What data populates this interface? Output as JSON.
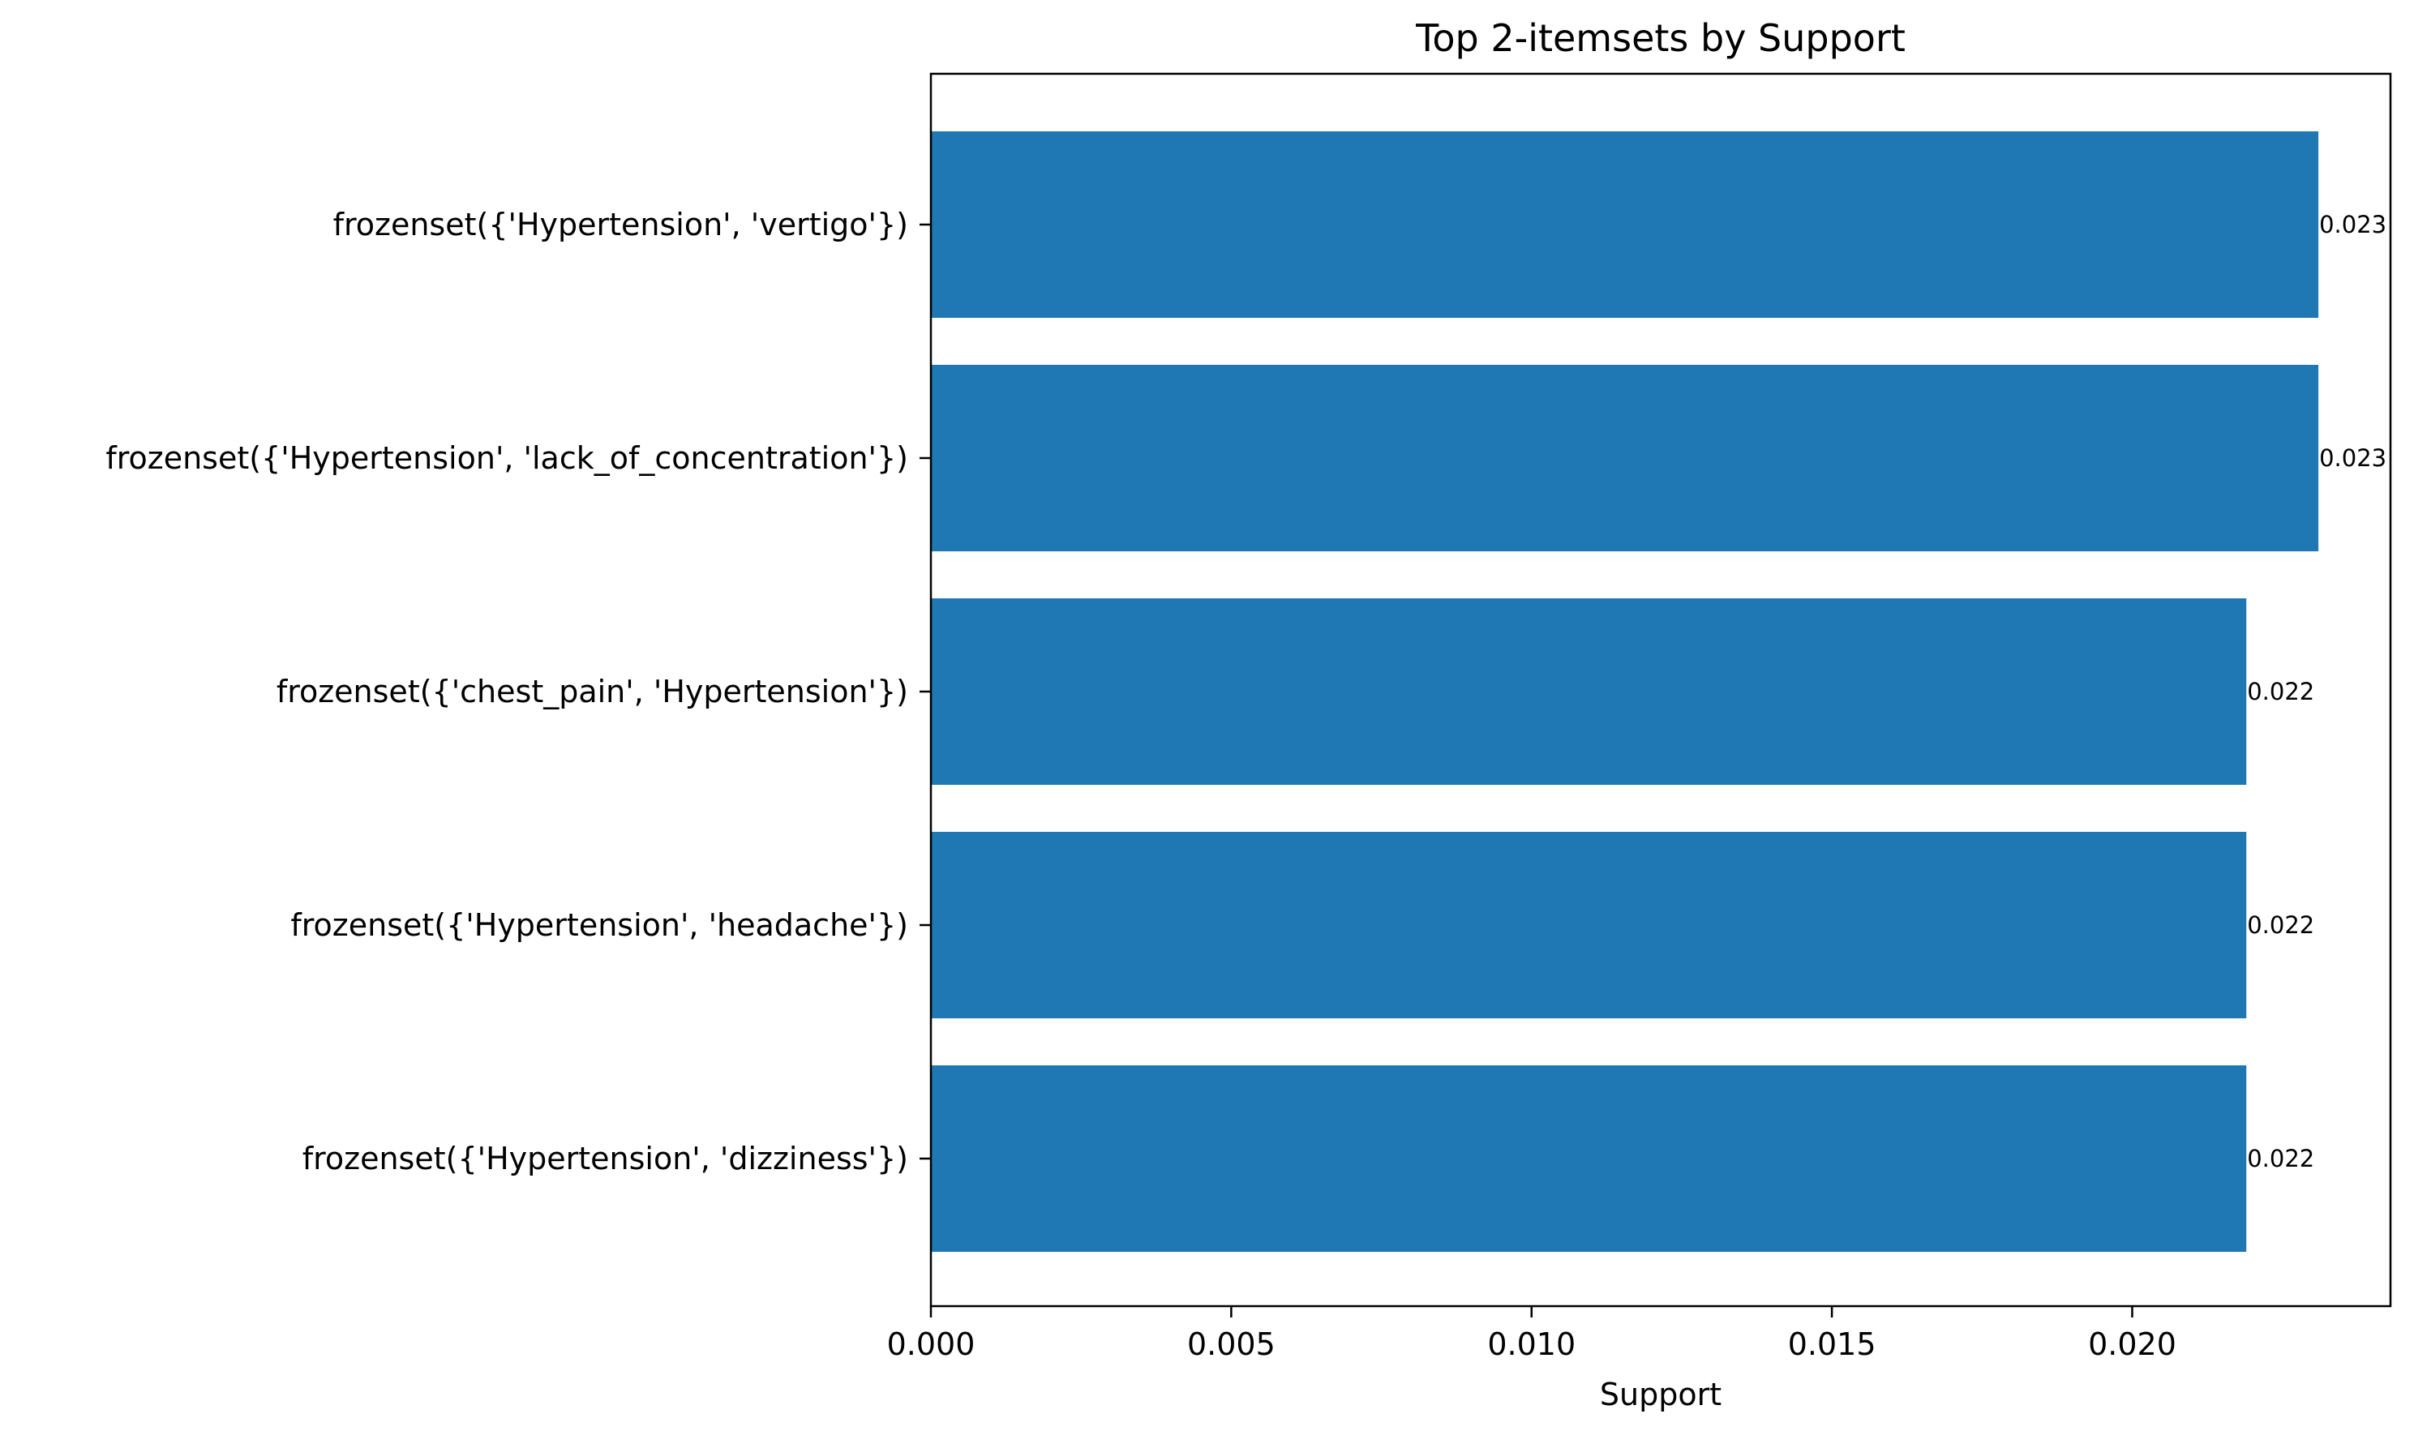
{
  "chart_data": {
    "type": "bar",
    "orientation": "horizontal",
    "title": "Top 2-itemsets by Support",
    "xlabel": "Support",
    "ylabel": "",
    "categories": [
      "frozenset({'Hypertension', 'vertigo'})",
      "frozenset({'Hypertension', 'lack_of_concentration'})",
      "frozenset({'chest_pain', 'Hypertension'})",
      "frozenset({'Hypertension', 'headache'})",
      "frozenset({'Hypertension', 'dizziness'})"
    ],
    "values": [
      0.0231,
      0.0231,
      0.0219,
      0.0219,
      0.0219
    ],
    "data_labels": [
      "0.023",
      "0.023",
      "0.022",
      "0.022",
      "0.022"
    ],
    "xlim": [
      0,
      0.0243
    ],
    "xticks": [
      0.0,
      0.005,
      0.01,
      0.015,
      0.02
    ],
    "xtick_labels": [
      "0.000",
      "0.005",
      "0.010",
      "0.015",
      "0.020"
    ],
    "bar_color": "#1f77b4",
    "grid": false,
    "legend": false
  }
}
